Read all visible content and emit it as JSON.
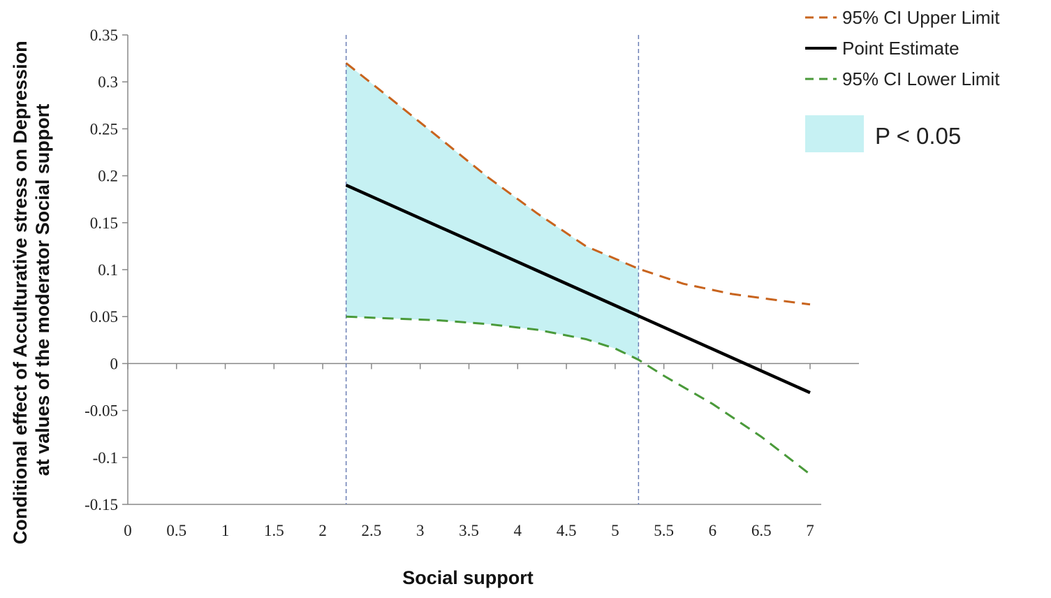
{
  "chart_data": {
    "type": "line",
    "xlabel": "Social support",
    "ylabel_lines": [
      "Conditional effect of Acculturative stress on Depression",
      "at values of the moderator Social support"
    ],
    "xlim": [
      0,
      7
    ],
    "ylim": [
      -0.15,
      0.35
    ],
    "x_ticks": [
      "0",
      "0.5",
      "1",
      "1.5",
      "2",
      "2.5",
      "3",
      "3.5",
      "4",
      "4.5",
      "5",
      "5.5",
      "6",
      "6.5",
      "7"
    ],
    "y_ticks": [
      "0.35",
      "0.3",
      "0.25",
      "0.2",
      "0.15",
      "0.1",
      "0.05",
      "0",
      "-0.05",
      "-0.1",
      "-0.15"
    ],
    "grid": false,
    "legend_position": "top-right",
    "region_bounds": [
      2.24,
      5.24
    ],
    "region_label": "P < 0.05",
    "region_color": "#c6f1f3",
    "series": [
      {
        "name": "95% CI Upper Limit",
        "style": "dashed",
        "color": "#c8641e",
        "x": [
          2.24,
          2.7,
          3.2,
          3.7,
          4.2,
          4.7,
          5.24,
          5.7,
          6.2,
          6.7,
          7.0
        ],
        "y": [
          0.32,
          0.282,
          0.24,
          0.198,
          0.16,
          0.125,
          0.101,
          0.085,
          0.074,
          0.067,
          0.063
        ]
      },
      {
        "name": "Point Estimate",
        "style": "solid",
        "color": "#000000",
        "x": [
          2.24,
          7.0
        ],
        "y": [
          0.19,
          -0.031
        ]
      },
      {
        "name": "95% CI Lower Limit",
        "style": "dashed",
        "color": "#4a9a3a",
        "x": [
          2.24,
          2.7,
          3.2,
          3.7,
          4.2,
          4.7,
          5.0,
          5.24,
          5.5,
          6.0,
          6.5,
          7.0
        ],
        "y": [
          0.05,
          0.048,
          0.046,
          0.042,
          0.036,
          0.026,
          0.016,
          0.004,
          -0.013,
          -0.043,
          -0.078,
          -0.118
        ]
      }
    ]
  }
}
